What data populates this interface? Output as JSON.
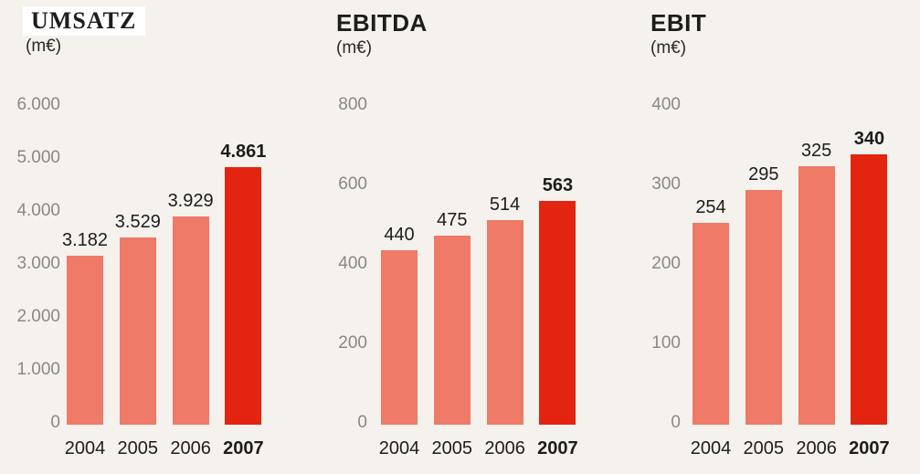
{
  "page": {
    "background_color": "#f5f1ec"
  },
  "colors": {
    "bar_default": "#ee7a67",
    "bar_highlight": "#e32410",
    "axis_tick_text": "#8b8784",
    "label_text": "#1d1d1b",
    "title_highlight_background": "#ffffff"
  },
  "chart_data": [
    {
      "type": "bar",
      "title": "UMSATZ",
      "title_highlighted": true,
      "unit": "(m€)",
      "xlabel": "",
      "ylabel": "m€",
      "categories": [
        "2004",
        "2005",
        "2006",
        "2007"
      ],
      "values": [
        3182,
        3529,
        3929,
        4861
      ],
      "value_labels": [
        "3.182",
        "3.529",
        "3.929",
        "4.861"
      ],
      "highlight_index": 3,
      "ylim": [
        0,
        6000
      ],
      "yticks": [
        0,
        1000,
        2000,
        3000,
        4000,
        5000,
        6000
      ],
      "ytick_labels": [
        "0",
        "1.000",
        "2.000",
        "3.000",
        "4.000",
        "5.000",
        "6.000"
      ],
      "grid": false,
      "legend": "none"
    },
    {
      "type": "bar",
      "title": "EBITDA",
      "title_highlighted": false,
      "unit": "(m€)",
      "xlabel": "",
      "ylabel": "m€",
      "categories": [
        "2004",
        "2005",
        "2006",
        "2007"
      ],
      "values": [
        440,
        475,
        514,
        563
      ],
      "value_labels": [
        "440",
        "475",
        "514",
        "563"
      ],
      "highlight_index": 3,
      "ylim": [
        0,
        800
      ],
      "yticks": [
        0,
        200,
        400,
        600,
        800
      ],
      "ytick_labels": [
        "0",
        "200",
        "400",
        "600",
        "800"
      ],
      "grid": false,
      "legend": "none"
    },
    {
      "type": "bar",
      "title": "EBIT",
      "title_highlighted": false,
      "unit": "(m€)",
      "xlabel": "",
      "ylabel": "m€",
      "categories": [
        "2004",
        "2005",
        "2006",
        "2007"
      ],
      "values": [
        254,
        295,
        325,
        340
      ],
      "value_labels": [
        "254",
        "295",
        "325",
        "340"
      ],
      "highlight_index": 3,
      "ylim": [
        0,
        400
      ],
      "yticks": [
        0,
        100,
        200,
        300,
        400
      ],
      "ytick_labels": [
        "0",
        "100",
        "200",
        "300",
        "400"
      ],
      "grid": false,
      "legend": "none"
    }
  ]
}
